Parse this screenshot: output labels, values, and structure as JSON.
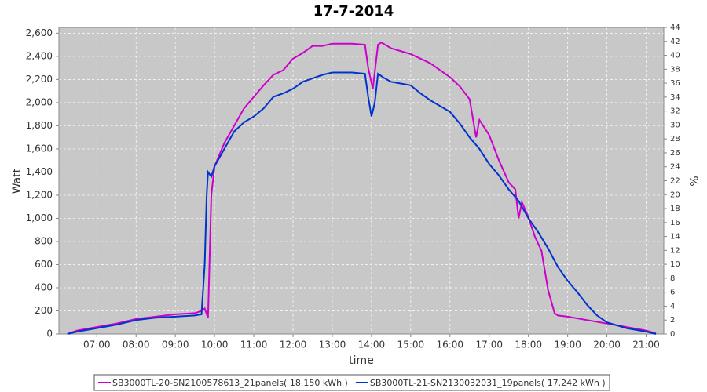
{
  "chart_data": {
    "type": "line",
    "title": "17-7-2014",
    "x_label": "time",
    "y_label": "Watt",
    "y2_label": "%",
    "xlim": [
      "06:02",
      "21:27"
    ],
    "xticks": [
      "07:00",
      "08:00",
      "09:00",
      "10:00",
      "11:00",
      "12:00",
      "13:00",
      "14:00",
      "15:00",
      "16:00",
      "17:00",
      "18:00",
      "19:00",
      "20:00",
      "21:00"
    ],
    "ylim": [
      0,
      2650
    ],
    "yticks": [
      0,
      200,
      400,
      600,
      800,
      {
        "value": 1000,
        "label": "1,000"
      },
      {
        "value": 1200,
        "label": "1,200"
      },
      {
        "value": 1400,
        "label": "1,400"
      },
      {
        "value": 1600,
        "label": "1,600"
      },
      {
        "value": 1800,
        "label": "1,800"
      },
      {
        "value": 2000,
        "label": "2,000"
      },
      {
        "value": 2200,
        "label": "2,200"
      },
      {
        "value": 2400,
        "label": "2,400"
      },
      {
        "value": 2600,
        "label": "2,600"
      }
    ],
    "y2lim": [
      0,
      44
    ],
    "y2ticks": [
      0,
      2,
      4,
      6,
      8,
      10,
      12,
      14,
      16,
      18,
      20,
      22,
      24,
      26,
      28,
      30,
      32,
      34,
      36,
      38,
      40,
      42,
      44
    ],
    "grid": true,
    "series": [
      {
        "name": "SB3000TL-20-SN2100578613_21panels( 18.150 kWh )",
        "color": "#cc00cc",
        "x": [
          "06:15",
          "06:30",
          "07:00",
          "07:30",
          "08:00",
          "08:30",
          "09:00",
          "09:30",
          "09:40",
          "09:45",
          "09:50",
          "09:55",
          "10:00",
          "10:15",
          "10:30",
          "10:45",
          "11:00",
          "11:15",
          "11:30",
          "11:45",
          "12:00",
          "12:15",
          "12:30",
          "12:45",
          "13:00",
          "13:30",
          "13:50",
          "13:55",
          "14:02",
          "14:10",
          "14:15",
          "14:30",
          "15:00",
          "15:15",
          "15:30",
          "15:45",
          "16:00",
          "16:15",
          "16:30",
          "16:40",
          "16:45",
          "17:00",
          "17:15",
          "17:30",
          "17:40",
          "17:45",
          "17:50",
          "18:00",
          "18:10",
          "18:20",
          "18:30",
          "18:40",
          "18:45",
          "19:00",
          "19:30",
          "20:00",
          "20:30",
          "21:00",
          "21:15"
        ],
        "values": [
          0,
          30,
          60,
          90,
          130,
          150,
          170,
          180,
          200,
          220,
          140,
          1200,
          1450,
          1650,
          1800,
          1950,
          2050,
          2150,
          2240,
          2280,
          2380,
          2430,
          2490,
          2490,
          2510,
          2510,
          2500,
          2300,
          2120,
          2500,
          2520,
          2470,
          2420,
          2380,
          2340,
          2280,
          2220,
          2140,
          2030,
          1700,
          1850,
          1720,
          1500,
          1310,
          1250,
          1000,
          1140,
          1010,
          840,
          720,
          380,
          180,
          160,
          150,
          120,
          90,
          60,
          30,
          5
        ]
      },
      {
        "name": "SB3000TL-21-SN2130032031_19panels( 17.242 kWh )",
        "color": "#0033cc",
        "x": [
          "06:15",
          "06:30",
          "07:00",
          "07:30",
          "08:00",
          "08:30",
          "09:00",
          "09:30",
          "09:40",
          "09:45",
          "09:48",
          "09:50",
          "09:55",
          "10:00",
          "10:15",
          "10:30",
          "10:45",
          "11:00",
          "11:15",
          "11:30",
          "11:45",
          "12:00",
          "12:15",
          "12:30",
          "12:45",
          "13:00",
          "13:30",
          "13:50",
          "13:55",
          "14:00",
          "14:05",
          "14:10",
          "14:20",
          "14:30",
          "15:00",
          "15:15",
          "15:30",
          "16:00",
          "16:15",
          "16:30",
          "16:45",
          "17:00",
          "17:15",
          "17:30",
          "17:45",
          "18:00",
          "18:15",
          "18:30",
          "18:45",
          "19:00",
          "19:15",
          "19:30",
          "19:45",
          "20:00",
          "20:30",
          "21:00",
          "21:15"
        ],
        "values": [
          0,
          20,
          50,
          80,
          120,
          140,
          150,
          160,
          170,
          600,
          1200,
          1400,
          1360,
          1450,
          1600,
          1750,
          1830,
          1880,
          1950,
          2050,
          2080,
          2120,
          2180,
          2210,
          2240,
          2260,
          2260,
          2250,
          2050,
          1880,
          2000,
          2250,
          2210,
          2180,
          2150,
          2080,
          2020,
          1920,
          1820,
          1700,
          1600,
          1470,
          1370,
          1250,
          1150,
          1000,
          880,
          740,
          580,
          460,
          360,
          250,
          160,
          100,
          50,
          20,
          0
        ]
      }
    ]
  }
}
